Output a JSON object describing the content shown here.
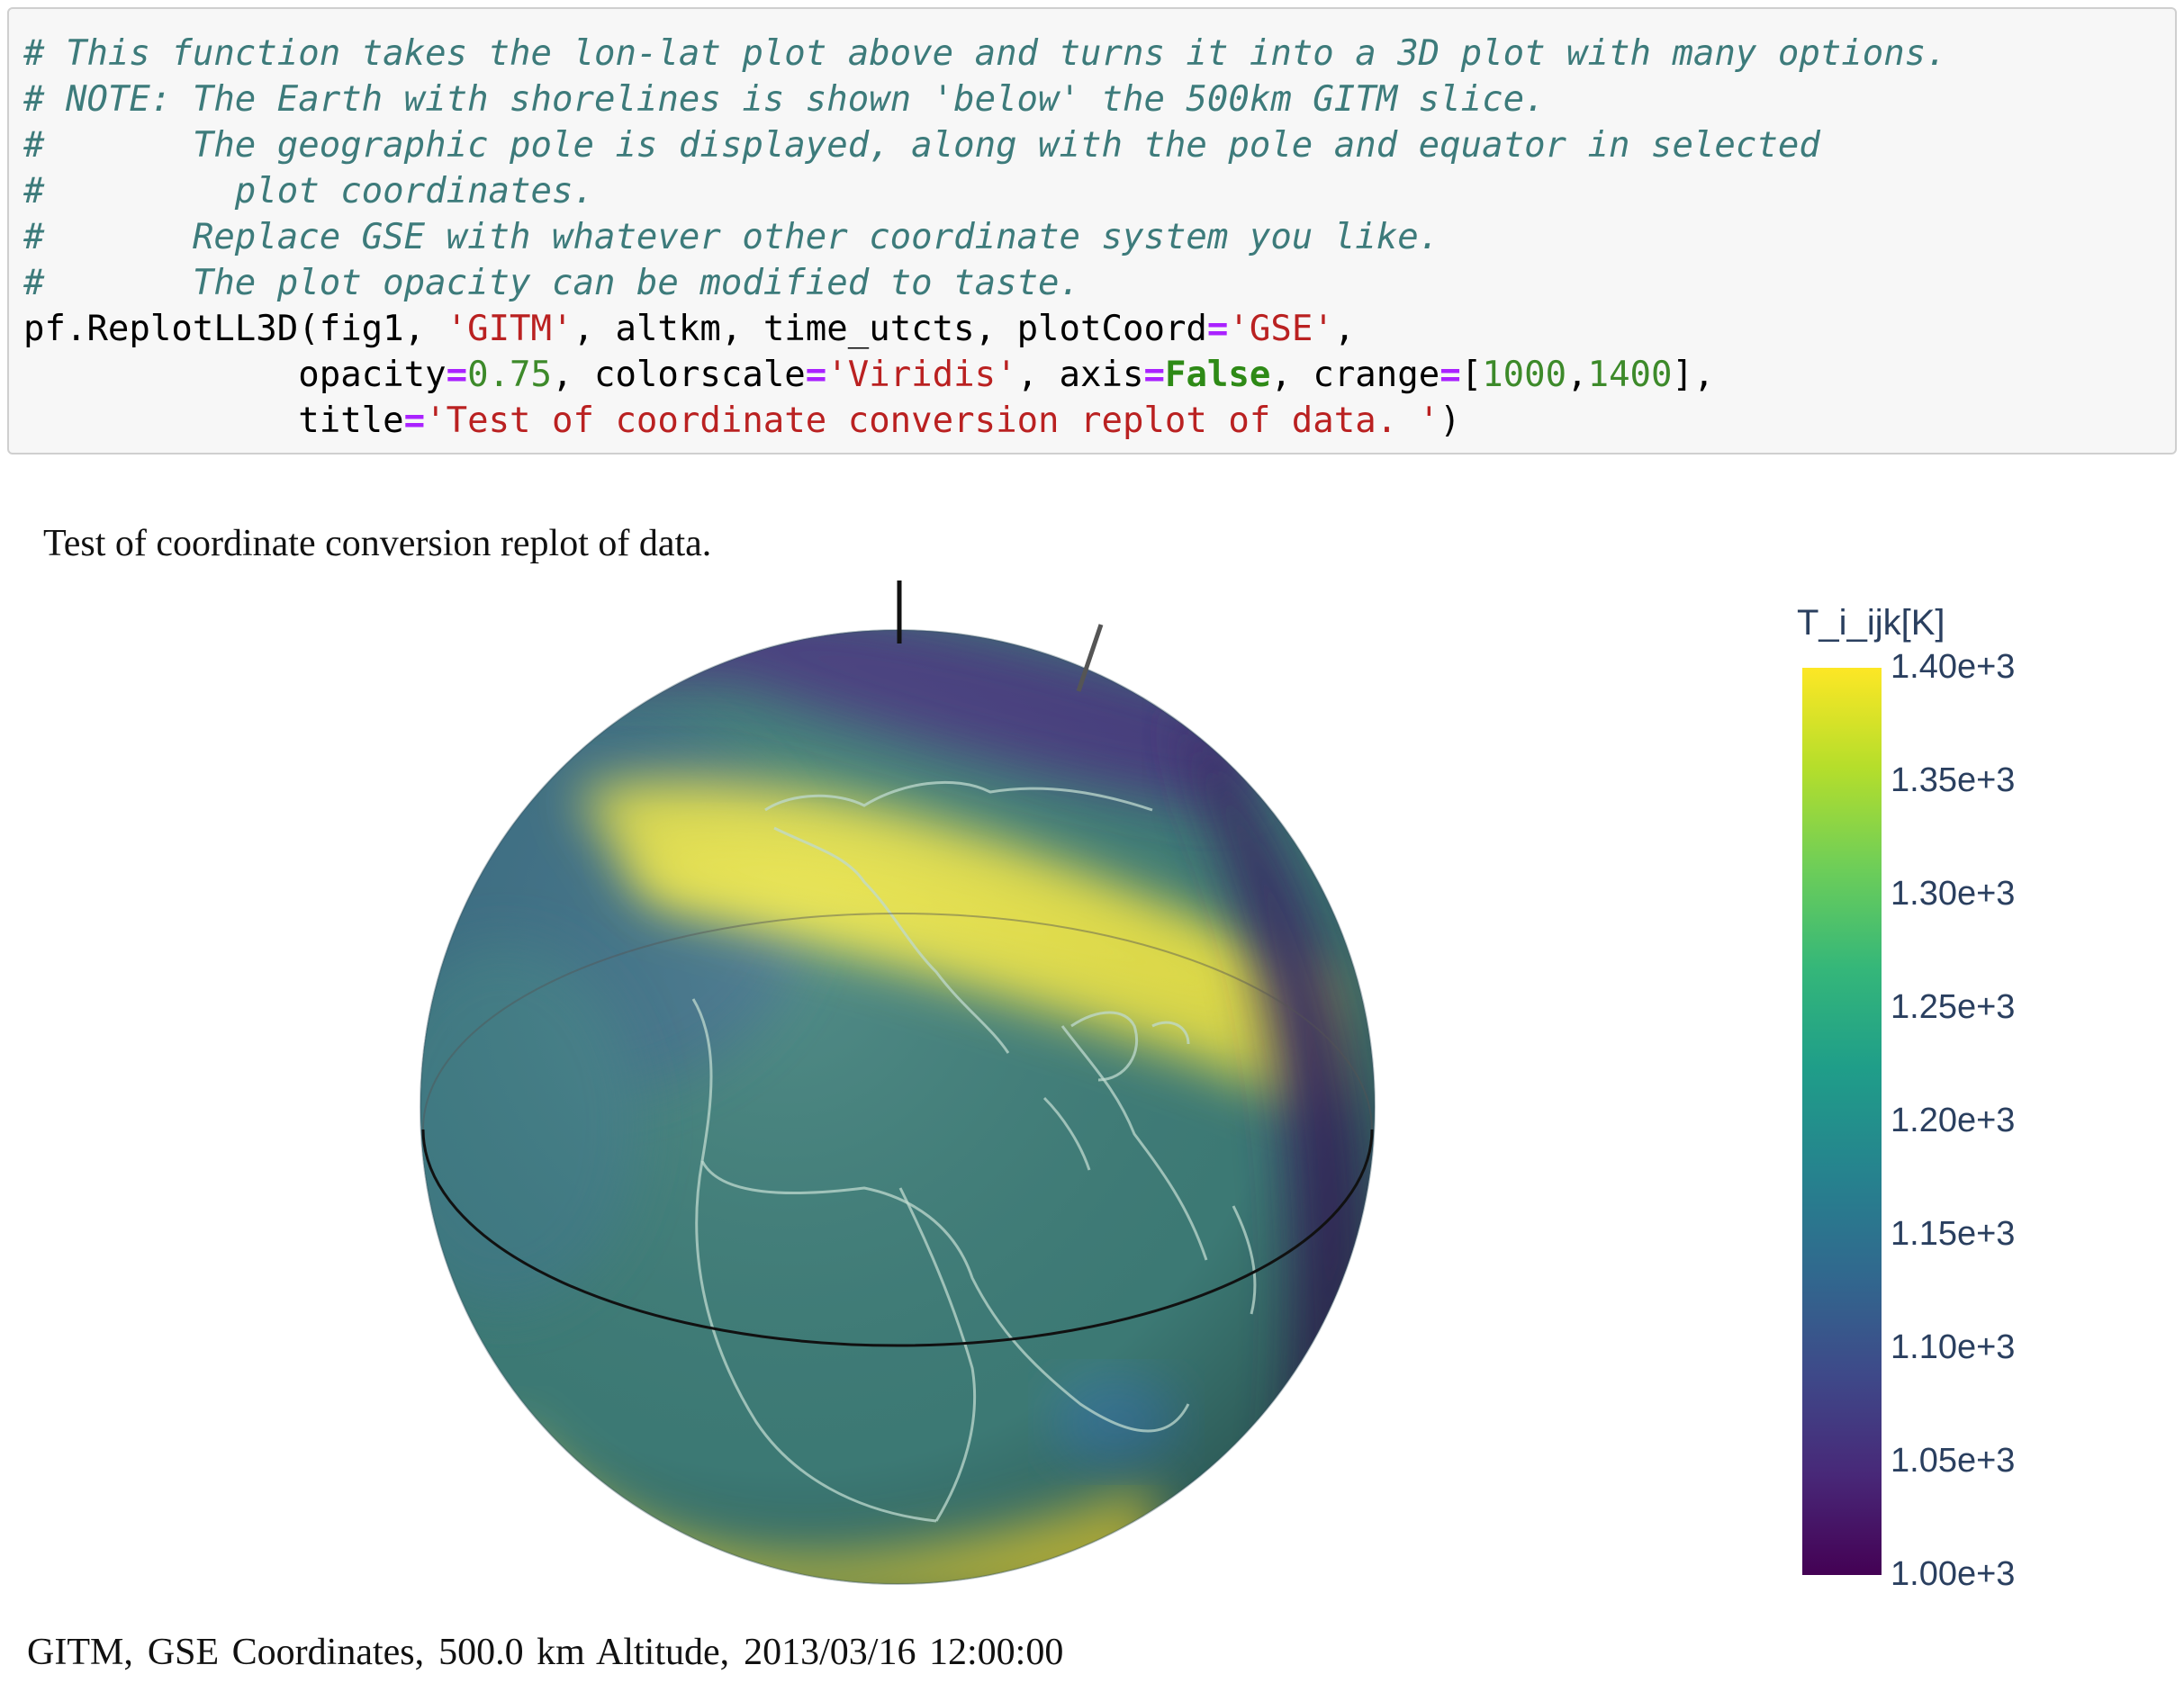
{
  "code": {
    "lines": [
      [
        {
          "t": "# This function takes the lon-lat plot above and turns it into a 3D plot with many options.",
          "c": "comment"
        }
      ],
      [
        {
          "t": "# NOTE: The Earth with shorelines is shown 'below' the 500km GITM slice.",
          "c": "comment"
        }
      ],
      [
        {
          "t": "#       The geographic pole is displayed, along with the pole and equator in selected",
          "c": "comment"
        }
      ],
      [
        {
          "t": "#         plot coordinates.",
          "c": "comment"
        }
      ],
      [
        {
          "t": "#       Replace GSE with whatever other coordinate system you like.",
          "c": "comment"
        }
      ],
      [
        {
          "t": "#       The plot opacity can be modified to taste.",
          "c": "comment"
        }
      ],
      [
        {
          "t": "pf.ReplotLL3D(fig1, ",
          "c": ""
        },
        {
          "t": "'GITM'",
          "c": "str"
        },
        {
          "t": ", altkm, time_utcts, plotCoord",
          "c": ""
        },
        {
          "t": "=",
          "c": "op"
        },
        {
          "t": "'GSE'",
          "c": "str"
        },
        {
          "t": ",",
          "c": ""
        }
      ],
      [
        {
          "t": "             opacity",
          "c": ""
        },
        {
          "t": "=",
          "c": "op"
        },
        {
          "t": "0.75",
          "c": "num"
        },
        {
          "t": ", colorscale",
          "c": ""
        },
        {
          "t": "=",
          "c": "op"
        },
        {
          "t": "'Viridis'",
          "c": "str"
        },
        {
          "t": ", axis",
          "c": ""
        },
        {
          "t": "=",
          "c": "op"
        },
        {
          "t": "False",
          "c": "kw"
        },
        {
          "t": ", crange",
          "c": ""
        },
        {
          "t": "=",
          "c": "op"
        },
        {
          "t": "[",
          "c": ""
        },
        {
          "t": "1000",
          "c": "num"
        },
        {
          "t": ",",
          "c": ""
        },
        {
          "t": "1400",
          "c": "num"
        },
        {
          "t": "],",
          "c": ""
        }
      ],
      [
        {
          "t": "             title",
          "c": ""
        },
        {
          "t": "=",
          "c": "op"
        },
        {
          "t": "'Test of coordinate conversion replot of data. '",
          "c": "str"
        },
        {
          "t": ")",
          "c": ""
        }
      ]
    ]
  },
  "plot": {
    "title": "Test of coordinate conversion replot of data.",
    "footer": [
      "GITM,",
      "GSE Coordinates,",
      "500.0 km Altitude,",
      "2013/03/16 12:00:00"
    ]
  },
  "colorbar": {
    "title": "T_i_ijk[K]",
    "colorscale": "Viridis",
    "range": [
      1000,
      1400
    ],
    "ticks": [
      {
        "value": 1400,
        "label": "1.40e+3"
      },
      {
        "value": 1350,
        "label": "1.35e+3"
      },
      {
        "value": 1300,
        "label": "1.30e+3"
      },
      {
        "value": 1250,
        "label": "1.25e+3"
      },
      {
        "value": 1200,
        "label": "1.20e+3"
      },
      {
        "value": 1150,
        "label": "1.15e+3"
      },
      {
        "value": 1100,
        "label": "1.10e+3"
      },
      {
        "value": 1050,
        "label": "1.05e+3"
      },
      {
        "value": 1000,
        "label": "1.00e+3"
      }
    ]
  },
  "colors": {
    "band_high": "#e8e24a",
    "band_mid": "#3f8f82",
    "band_low": "#3b2e6e",
    "coastline": "#bfd9cf",
    "equator": "#111111"
  }
}
